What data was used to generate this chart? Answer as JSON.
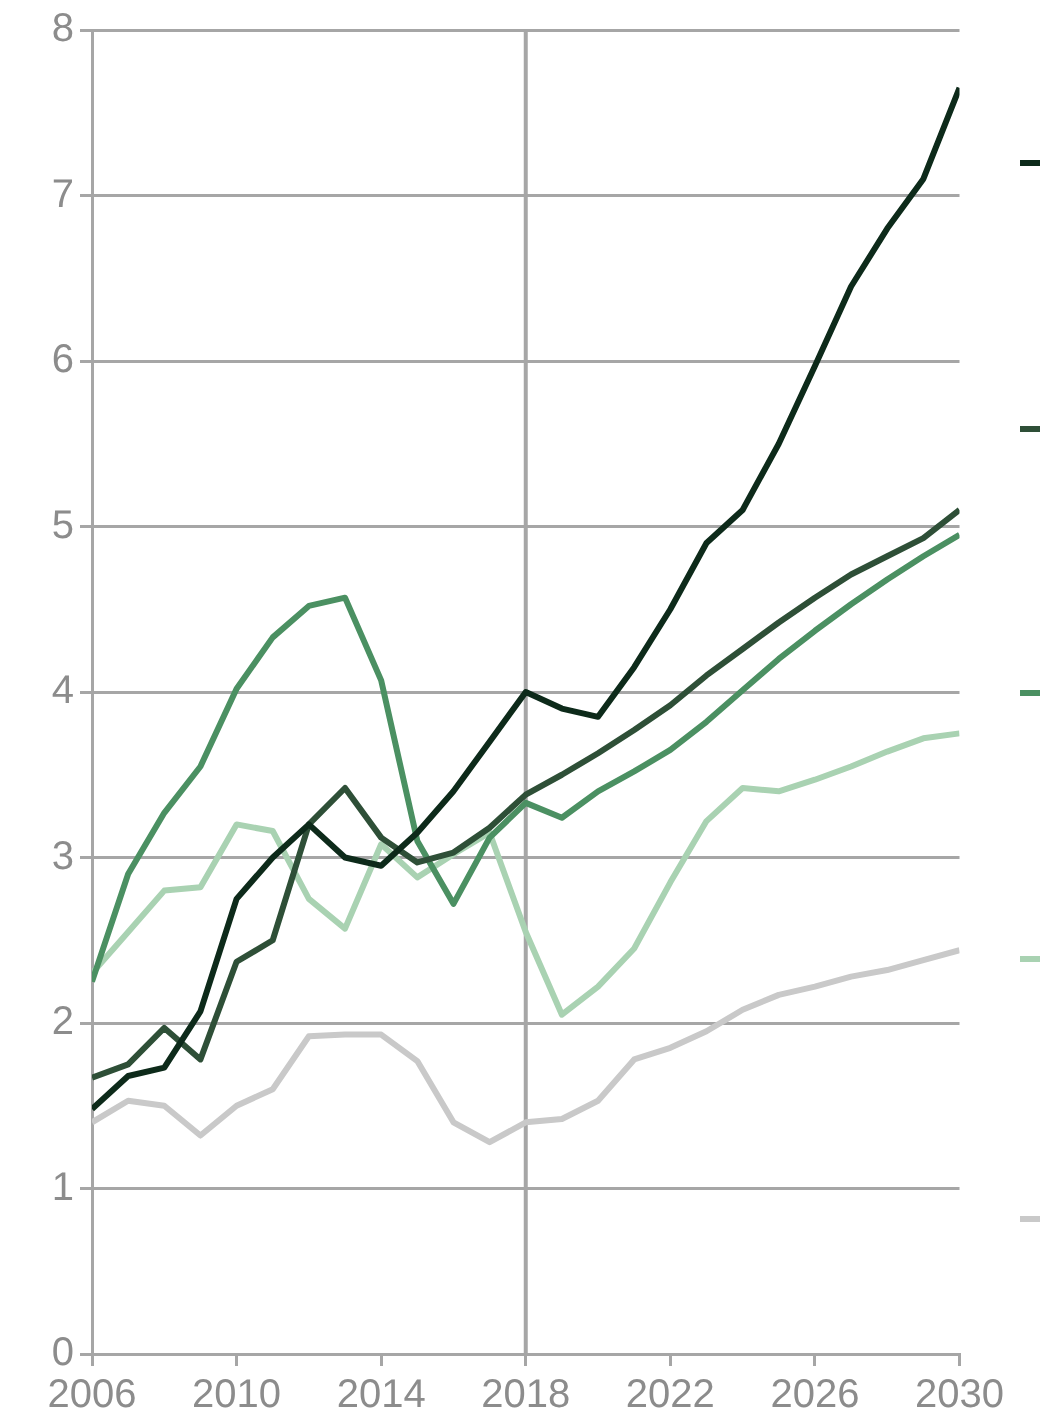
{
  "chart_data": {
    "type": "line",
    "x": [
      2006,
      2007,
      2008,
      2009,
      2010,
      2011,
      2012,
      2013,
      2014,
      2015,
      2016,
      2017,
      2018,
      2019,
      2020,
      2021,
      2022,
      2023,
      2024,
      2025,
      2026,
      2027,
      2028,
      2029,
      2030
    ],
    "series": [
      {
        "color": "#0d2a1a",
        "values": [
          1.48,
          1.68,
          1.73,
          2.07,
          2.75,
          3.0,
          3.2,
          3.0,
          2.95,
          3.15,
          3.4,
          3.7,
          4.0,
          3.9,
          3.85,
          4.15,
          4.5,
          4.9,
          5.1,
          5.5,
          5.97,
          6.45,
          6.8,
          7.1,
          7.65
        ]
      },
      {
        "color": "#2e4f37",
        "values": [
          1.67,
          1.75,
          1.97,
          1.78,
          2.37,
          2.5,
          3.2,
          3.42,
          3.12,
          2.97,
          3.03,
          3.18,
          3.38,
          3.5,
          3.63,
          3.77,
          3.92,
          4.1,
          4.26,
          4.42,
          4.57,
          4.71,
          4.82,
          4.93,
          5.1
        ]
      },
      {
        "color": "#4b9062",
        "values": [
          2.25,
          2.9,
          3.27,
          3.55,
          4.02,
          4.33,
          4.52,
          4.57,
          4.07,
          3.1,
          2.72,
          3.12,
          3.33,
          3.24,
          3.4,
          3.52,
          3.65,
          3.82,
          4.01,
          4.2,
          4.37,
          4.53,
          4.68,
          4.82,
          4.95
        ]
      },
      {
        "color": "#a9d2b2",
        "values": [
          2.3,
          2.55,
          2.8,
          2.82,
          3.2,
          3.16,
          2.75,
          2.57,
          3.08,
          2.88,
          3.02,
          3.15,
          2.55,
          2.05,
          2.22,
          2.45,
          2.85,
          3.22,
          3.42,
          3.4,
          3.47,
          3.55,
          3.64,
          3.72,
          3.75
        ]
      },
      {
        "color": "#c9c9c9",
        "values": [
          1.4,
          1.53,
          1.5,
          1.32,
          1.5,
          1.6,
          1.92,
          1.93,
          1.93,
          1.77,
          1.4,
          1.28,
          1.4,
          1.42,
          1.53,
          1.78,
          1.85,
          1.95,
          2.08,
          2.17,
          2.22,
          2.28,
          2.32,
          2.38,
          2.44
        ]
      }
    ],
    "xlim": [
      2006,
      2030
    ],
    "xticks": [
      2006,
      2010,
      2014,
      2018,
      2022,
      2026,
      2030
    ],
    "ylim": [
      0,
      8
    ],
    "yticks": [
      0,
      1,
      2,
      3,
      4,
      5,
      6,
      7,
      8
    ],
    "grid": "y",
    "marker": "none",
    "line_style": "solid",
    "ref_lines": [
      {
        "axis": "x",
        "value": 2018,
        "color": "#a6a6a6"
      }
    ]
  }
}
